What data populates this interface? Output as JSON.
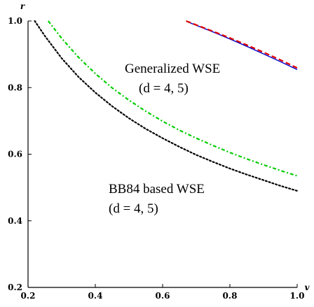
{
  "chart_data": {
    "type": "line",
    "xlabel": "v",
    "ylabel": "r",
    "xlim": [
      0.2,
      1.0
    ],
    "ylim": [
      0.2,
      1.0
    ],
    "xticks": [
      "0.2",
      "0.4",
      "0.6",
      "0.8",
      "1.0"
    ],
    "yticks": [
      "0.2",
      "0.4",
      "0.6",
      "0.8",
      "1.0"
    ],
    "grid": false,
    "annotations": [
      {
        "line1": "Generalized WSE",
        "line2": "(d = 4, 5)"
      },
      {
        "line1": "BB84 based WSE",
        "line2": "(d = 4, 5)"
      }
    ],
    "series": [
      {
        "color": "#0000cc",
        "style": "solid",
        "x": [
          0.67,
          0.7,
          0.75,
          0.8,
          0.85,
          0.9,
          0.95,
          1.0
        ],
        "y": [
          0.999,
          0.987,
          0.967,
          0.946,
          0.924,
          0.901,
          0.878,
          0.854
        ]
      },
      {
        "color": "#e00000",
        "style": "dashed",
        "x": [
          0.67,
          0.7,
          0.75,
          0.8,
          0.85,
          0.9,
          0.95,
          1.0
        ],
        "y": [
          1.0,
          0.988,
          0.969,
          0.949,
          0.928,
          0.906,
          0.883,
          0.859
        ]
      },
      {
        "color": "#00cc00",
        "style": "dash-dot",
        "x": [
          0.26,
          0.3,
          0.35,
          0.4,
          0.45,
          0.5,
          0.55,
          0.6,
          0.65,
          0.7,
          0.75,
          0.8,
          0.85,
          0.9,
          0.95,
          1.0
        ],
        "y": [
          1.0,
          0.948,
          0.891,
          0.842,
          0.799,
          0.762,
          0.729,
          0.699,
          0.672,
          0.648,
          0.626,
          0.605,
          0.586,
          0.568,
          0.551,
          0.535
        ]
      },
      {
        "color": "#000000",
        "style": "dotted",
        "x": [
          0.22,
          0.25,
          0.3,
          0.35,
          0.4,
          0.45,
          0.5,
          0.55,
          0.6,
          0.65,
          0.7,
          0.75,
          0.8,
          0.85,
          0.9,
          0.95,
          1.0
        ],
        "y": [
          1.0,
          0.955,
          0.888,
          0.832,
          0.785,
          0.744,
          0.708,
          0.676,
          0.648,
          0.622,
          0.598,
          0.577,
          0.557,
          0.539,
          0.522,
          0.505,
          0.49
        ]
      }
    ]
  }
}
